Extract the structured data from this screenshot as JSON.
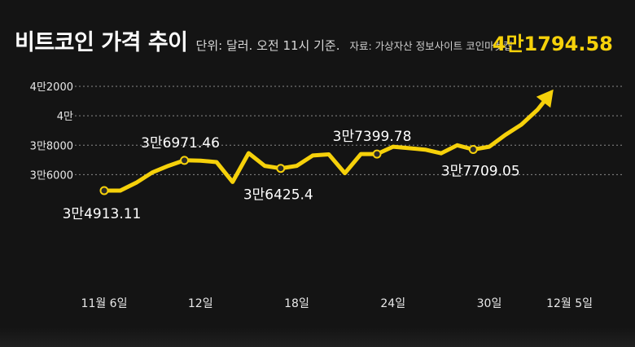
{
  "header": {
    "title": "비트코인 가격 추이",
    "unit_note": "단위: 달러. 오전 11시 기준.",
    "source": "자료: 가상자산 정보사이트 코인마켓캡"
  },
  "colors": {
    "background": "#141414",
    "line": "#f6d10a",
    "highlight_label": "#f6d10a",
    "grid": "#8a8a8a",
    "text": "#e8e8e8"
  },
  "chart_data": {
    "type": "line",
    "title": "비트코인 가격 추이",
    "xlabel": "",
    "ylabel": "",
    "ylim": [
      28600,
      43000
    ],
    "yticks": [
      {
        "value": 36000,
        "label": "3만6000"
      },
      {
        "value": 38000,
        "label": "3만8000"
      },
      {
        "value": 40000,
        "label": "4만"
      },
      {
        "value": 42000,
        "label": "4만2000"
      }
    ],
    "x_index_range": [
      0,
      30
    ],
    "xticks": [
      {
        "index": 0,
        "label": "11월 6일"
      },
      {
        "index": 6,
        "label": "12일"
      },
      {
        "index": 12,
        "label": "18일"
      },
      {
        "index": 18,
        "label": "24일"
      },
      {
        "index": 24,
        "label": "30일"
      },
      {
        "index": 29,
        "label": "12월 5일"
      }
    ],
    "grid": true,
    "series": [
      {
        "values": [
          34913.11,
          34913.11,
          35450,
          36150,
          36600,
          36971.46,
          36950,
          36850,
          35500,
          37460,
          36600,
          36425.4,
          36600,
          37300,
          37380,
          36100,
          37400,
          37399.78,
          37900,
          37800,
          37700,
          37450,
          38000,
          37709.05,
          37900,
          38700,
          39400,
          40400,
          41794.58
        ]
      }
    ],
    "annotations": [
      {
        "index": 0,
        "text": "3만4913.11",
        "marker": true,
        "highlight": false
      },
      {
        "index": 5,
        "text": "3만6971.46",
        "marker": true,
        "highlight": false
      },
      {
        "index": 11,
        "text": "3만6425.4",
        "marker": true,
        "highlight": false
      },
      {
        "index": 17,
        "text": "3만7399.78",
        "marker": true,
        "highlight": false
      },
      {
        "index": 23,
        "text": "3만7709.05",
        "marker": true,
        "highlight": false
      },
      {
        "index": 28,
        "text": "4만1794.58",
        "marker": false,
        "highlight": true
      }
    ]
  }
}
